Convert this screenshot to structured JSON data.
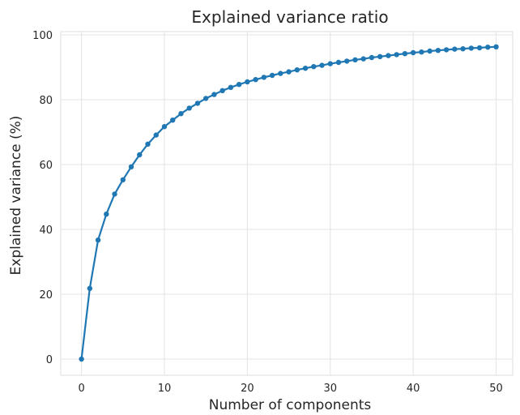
{
  "chart_data": {
    "type": "line",
    "title": "Explained variance ratio",
    "xlabel": "Number of components",
    "ylabel": "Explained variance (%)",
    "xlim": [
      -2.5,
      52
    ],
    "ylim": [
      -5,
      101
    ],
    "xticks": [
      0,
      10,
      20,
      30,
      40,
      50
    ],
    "yticks": [
      0,
      20,
      40,
      60,
      80,
      100
    ],
    "grid": true,
    "line_color": "#1f77b4",
    "x": [
      0,
      1,
      2,
      3,
      4,
      5,
      6,
      7,
      8,
      9,
      10,
      11,
      12,
      13,
      14,
      15,
      16,
      17,
      18,
      19,
      20,
      21,
      22,
      23,
      24,
      25,
      26,
      27,
      28,
      29,
      30,
      31,
      32,
      33,
      34,
      35,
      36,
      37,
      38,
      39,
      40,
      41,
      42,
      43,
      44,
      45,
      46,
      47,
      48,
      49,
      50
    ],
    "series": [
      {
        "values": [
          0,
          21.8,
          36.7,
          44.7,
          50.9,
          55.3,
          59.3,
          63.0,
          66.3,
          69.1,
          71.7,
          73.7,
          75.7,
          77.4,
          78.9,
          80.4,
          81.6,
          82.8,
          83.8,
          84.7,
          85.5,
          86.2,
          86.9,
          87.5,
          88.1,
          88.6,
          89.2,
          89.7,
          90.2,
          90.6,
          91.1,
          91.5,
          91.9,
          92.3,
          92.6,
          93.0,
          93.3,
          93.6,
          93.9,
          94.2,
          94.5,
          94.7,
          95.0,
          95.2,
          95.4,
          95.6,
          95.7,
          95.9,
          96.0,
          96.2,
          96.3
        ]
      }
    ]
  }
}
